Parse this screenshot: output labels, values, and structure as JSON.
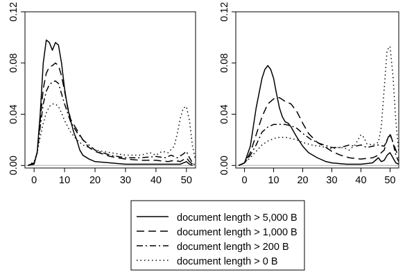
{
  "chart_data": [
    {
      "type": "line",
      "panel": "left",
      "title": "",
      "xlabel": "",
      "ylabel": "",
      "xlim": [
        -3,
        53
      ],
      "ylim": [
        -0.002,
        0.12
      ],
      "xticks": [
        0,
        10,
        20,
        30,
        40,
        50
      ],
      "xtick_labels": [
        "0",
        "10",
        "20",
        "30",
        "40",
        "50"
      ],
      "yticks": [
        0.0,
        0.04,
        0.08,
        0.12
      ],
      "ytick_labels": [
        "0.00",
        "0.04",
        "0.08",
        "0.12"
      ],
      "grid": false,
      "series": [
        {
          "name": "document length > 5,000 B",
          "line_style": "solid",
          "points": [
            [
              -2,
              0
            ],
            [
              0,
              0.001
            ],
            [
              1,
              0.01
            ],
            [
              2,
              0.04
            ],
            [
              3,
              0.08
            ],
            [
              4,
              0.098
            ],
            [
              5,
              0.096
            ],
            [
              6,
              0.09
            ],
            [
              7,
              0.096
            ],
            [
              8,
              0.094
            ],
            [
              9,
              0.08
            ],
            [
              10,
              0.06
            ],
            [
              11,
              0.045
            ],
            [
              12,
              0.035
            ],
            [
              13,
              0.026
            ],
            [
              14,
              0.02
            ],
            [
              15,
              0.012
            ],
            [
              16,
              0.008
            ],
            [
              18,
              0.005
            ],
            [
              20,
              0.003
            ],
            [
              25,
              0.002
            ],
            [
              30,
              0.001
            ],
            [
              35,
              0.001
            ],
            [
              40,
              0.001
            ],
            [
              44,
              0.001
            ],
            [
              46,
              0.001
            ],
            [
              48,
              0.001
            ],
            [
              50,
              0.003
            ],
            [
              51,
              0.001
            ],
            [
              52,
              0
            ]
          ]
        },
        {
          "name": "document length > 1,000 B",
          "line_style": "dashed",
          "points": [
            [
              -2,
              0
            ],
            [
              0,
              0.002
            ],
            [
              1,
              0.01
            ],
            [
              2,
              0.035
            ],
            [
              3,
              0.06
            ],
            [
              4,
              0.072
            ],
            [
              5,
              0.077
            ],
            [
              6,
              0.078
            ],
            [
              7,
              0.08
            ],
            [
              8,
              0.078
            ],
            [
              9,
              0.07
            ],
            [
              10,
              0.058
            ],
            [
              11,
              0.046
            ],
            [
              12,
              0.036
            ],
            [
              14,
              0.028
            ],
            [
              16,
              0.02
            ],
            [
              18,
              0.014
            ],
            [
              20,
              0.011
            ],
            [
              25,
              0.007
            ],
            [
              30,
              0.005
            ],
            [
              35,
              0.004
            ],
            [
              40,
              0.004
            ],
            [
              44,
              0.003
            ],
            [
              46,
              0.004
            ],
            [
              48,
              0.003
            ],
            [
              50,
              0.006
            ],
            [
              51,
              0.003
            ],
            [
              52,
              0.001
            ],
            [
              53,
              0
            ]
          ]
        },
        {
          "name": "document length > 200 B",
          "line_style": "dashdot",
          "points": [
            [
              -2,
              0
            ],
            [
              0,
              0.002
            ],
            [
              1,
              0.01
            ],
            [
              2,
              0.03
            ],
            [
              3,
              0.048
            ],
            [
              4,
              0.058
            ],
            [
              5,
              0.063
            ],
            [
              6,
              0.065
            ],
            [
              7,
              0.066
            ],
            [
              8,
              0.064
            ],
            [
              9,
              0.056
            ],
            [
              10,
              0.048
            ],
            [
              12,
              0.034
            ],
            [
              14,
              0.026
            ],
            [
              16,
              0.02
            ],
            [
              18,
              0.016
            ],
            [
              20,
              0.012
            ],
            [
              25,
              0.008
            ],
            [
              30,
              0.006
            ],
            [
              35,
              0.006
            ],
            [
              40,
              0.007
            ],
            [
              43,
              0.006
            ],
            [
              45,
              0.008
            ],
            [
              47,
              0.006
            ],
            [
              49,
              0.009
            ],
            [
              50,
              0.011
            ],
            [
              51,
              0.006
            ],
            [
              52,
              0.002
            ],
            [
              53,
              0
            ]
          ]
        },
        {
          "name": "document length > 0 B",
          "line_style": "dotted",
          "points": [
            [
              -2,
              0
            ],
            [
              0,
              0.003
            ],
            [
              1,
              0.01
            ],
            [
              2,
              0.022
            ],
            [
              3,
              0.033
            ],
            [
              4,
              0.041
            ],
            [
              5,
              0.046
            ],
            [
              6,
              0.048
            ],
            [
              7,
              0.048
            ],
            [
              8,
              0.046
            ],
            [
              9,
              0.041
            ],
            [
              10,
              0.035
            ],
            [
              12,
              0.026
            ],
            [
              14,
              0.02
            ],
            [
              16,
              0.016
            ],
            [
              18,
              0.014
            ],
            [
              20,
              0.012
            ],
            [
              25,
              0.01
            ],
            [
              30,
              0.008
            ],
            [
              35,
              0.008
            ],
            [
              38,
              0.01
            ],
            [
              40,
              0.008
            ],
            [
              42,
              0.011
            ],
            [
              44,
              0.01
            ],
            [
              46,
              0.015
            ],
            [
              47,
              0.025
            ],
            [
              48,
              0.037
            ],
            [
              49,
              0.045
            ],
            [
              50,
              0.046
            ],
            [
              51,
              0.035
            ],
            [
              52,
              0.015
            ],
            [
              53,
              0.004
            ]
          ]
        }
      ]
    },
    {
      "type": "line",
      "panel": "right",
      "title": "",
      "xlabel": "",
      "ylabel": "",
      "xlim": [
        -3,
        53
      ],
      "ylim": [
        -0.002,
        0.12
      ],
      "xticks": [
        0,
        10,
        20,
        30,
        40,
        50
      ],
      "xtick_labels": [
        "0",
        "10",
        "20",
        "30",
        "40",
        "50"
      ],
      "yticks": [
        0.0,
        0.04,
        0.08,
        0.12
      ],
      "ytick_labels": [
        "0.00",
        "0.04",
        "0.08",
        "0.12"
      ],
      "grid": false,
      "series": [
        {
          "name": "document length > 5,000 B",
          "line_style": "solid",
          "points": [
            [
              -2,
              0
            ],
            [
              0,
              0.002
            ],
            [
              2,
              0.015
            ],
            [
              4,
              0.045
            ],
            [
              6,
              0.068
            ],
            [
              7,
              0.075
            ],
            [
              8,
              0.078
            ],
            [
              9,
              0.075
            ],
            [
              10,
              0.068
            ],
            [
              11,
              0.056
            ],
            [
              12,
              0.045
            ],
            [
              13,
              0.038
            ],
            [
              14,
              0.034
            ],
            [
              15,
              0.033
            ],
            [
              16,
              0.03
            ],
            [
              18,
              0.022
            ],
            [
              20,
              0.015
            ],
            [
              22,
              0.01
            ],
            [
              25,
              0.006
            ],
            [
              28,
              0.003
            ],
            [
              30,
              0.002
            ],
            [
              35,
              0.001
            ],
            [
              40,
              0.001
            ],
            [
              44,
              0.002
            ],
            [
              46,
              0.006
            ],
            [
              47,
              0.003
            ],
            [
              48,
              0.004
            ],
            [
              49,
              0.008
            ],
            [
              50,
              0.01
            ],
            [
              51,
              0.006
            ],
            [
              52,
              0.002
            ],
            [
              53,
              0.001
            ]
          ]
        },
        {
          "name": "document length > 1,000 B",
          "line_style": "dashed",
          "points": [
            [
              -2,
              0
            ],
            [
              0,
              0.002
            ],
            [
              2,
              0.01
            ],
            [
              4,
              0.024
            ],
            [
              6,
              0.038
            ],
            [
              8,
              0.048
            ],
            [
              10,
              0.052
            ],
            [
              12,
              0.053
            ],
            [
              14,
              0.05
            ],
            [
              16,
              0.048
            ],
            [
              18,
              0.042
            ],
            [
              20,
              0.033
            ],
            [
              22,
              0.025
            ],
            [
              25,
              0.018
            ],
            [
              28,
              0.014
            ],
            [
              30,
              0.011
            ],
            [
              33,
              0.008
            ],
            [
              36,
              0.006
            ],
            [
              40,
              0.005
            ],
            [
              44,
              0.006
            ],
            [
              46,
              0.008
            ],
            [
              48,
              0.012
            ],
            [
              49,
              0.02
            ],
            [
              50,
              0.025
            ],
            [
              51,
              0.018
            ],
            [
              52,
              0.012
            ],
            [
              53,
              0.006
            ]
          ]
        },
        {
          "name": "document length > 200 B",
          "line_style": "dashdot",
          "points": [
            [
              -2,
              0
            ],
            [
              0,
              0.002
            ],
            [
              2,
              0.008
            ],
            [
              4,
              0.016
            ],
            [
              6,
              0.026
            ],
            [
              8,
              0.03
            ],
            [
              10,
              0.032
            ],
            [
              12,
              0.032
            ],
            [
              14,
              0.032
            ],
            [
              16,
              0.031
            ],
            [
              18,
              0.029
            ],
            [
              20,
              0.025
            ],
            [
              23,
              0.02
            ],
            [
              26,
              0.017
            ],
            [
              30,
              0.014
            ],
            [
              33,
              0.014
            ],
            [
              36,
              0.016
            ],
            [
              38,
              0.015
            ],
            [
              40,
              0.016
            ],
            [
              42,
              0.014
            ],
            [
              44,
              0.015
            ],
            [
              46,
              0.016
            ],
            [
              48,
              0.015
            ],
            [
              50,
              0.024
            ],
            [
              51,
              0.018
            ],
            [
              52,
              0.008
            ],
            [
              53,
              0.003
            ]
          ]
        },
        {
          "name": "document length > 0 B",
          "line_style": "dotted",
          "points": [
            [
              -2,
              0
            ],
            [
              0,
              0.002
            ],
            [
              2,
              0.006
            ],
            [
              4,
              0.011
            ],
            [
              6,
              0.016
            ],
            [
              8,
              0.019
            ],
            [
              10,
              0.021
            ],
            [
              12,
              0.022
            ],
            [
              14,
              0.022
            ],
            [
              16,
              0.021
            ],
            [
              18,
              0.02
            ],
            [
              20,
              0.018
            ],
            [
              23,
              0.016
            ],
            [
              26,
              0.015
            ],
            [
              28,
              0.014
            ],
            [
              30,
              0.013
            ],
            [
              32,
              0.014
            ],
            [
              34,
              0.014
            ],
            [
              36,
              0.012
            ],
            [
              38,
              0.016
            ],
            [
              40,
              0.024
            ],
            [
              41,
              0.022
            ],
            [
              42,
              0.017
            ],
            [
              44,
              0.016
            ],
            [
              46,
              0.018
            ],
            [
              47,
              0.03
            ],
            [
              48,
              0.06
            ],
            [
              49,
              0.09
            ],
            [
              50,
              0.093
            ],
            [
              51,
              0.07
            ],
            [
              52,
              0.035
            ],
            [
              53,
              0.01
            ]
          ]
        }
      ]
    }
  ],
  "legend": {
    "position": "bottom-center",
    "items": [
      {
        "label": "document length > 5,000 B",
        "line_style": "solid"
      },
      {
        "label": "document length > 1,000 B",
        "line_style": "dashed"
      },
      {
        "label": "document length > 200 B",
        "line_style": "dashdot"
      },
      {
        "label": "document length > 0 B",
        "line_style": "dotted"
      }
    ]
  },
  "colors": {
    "line": "#000000",
    "axis": "#000000",
    "baseline": "#aaaaaa",
    "background": "#ffffff"
  }
}
